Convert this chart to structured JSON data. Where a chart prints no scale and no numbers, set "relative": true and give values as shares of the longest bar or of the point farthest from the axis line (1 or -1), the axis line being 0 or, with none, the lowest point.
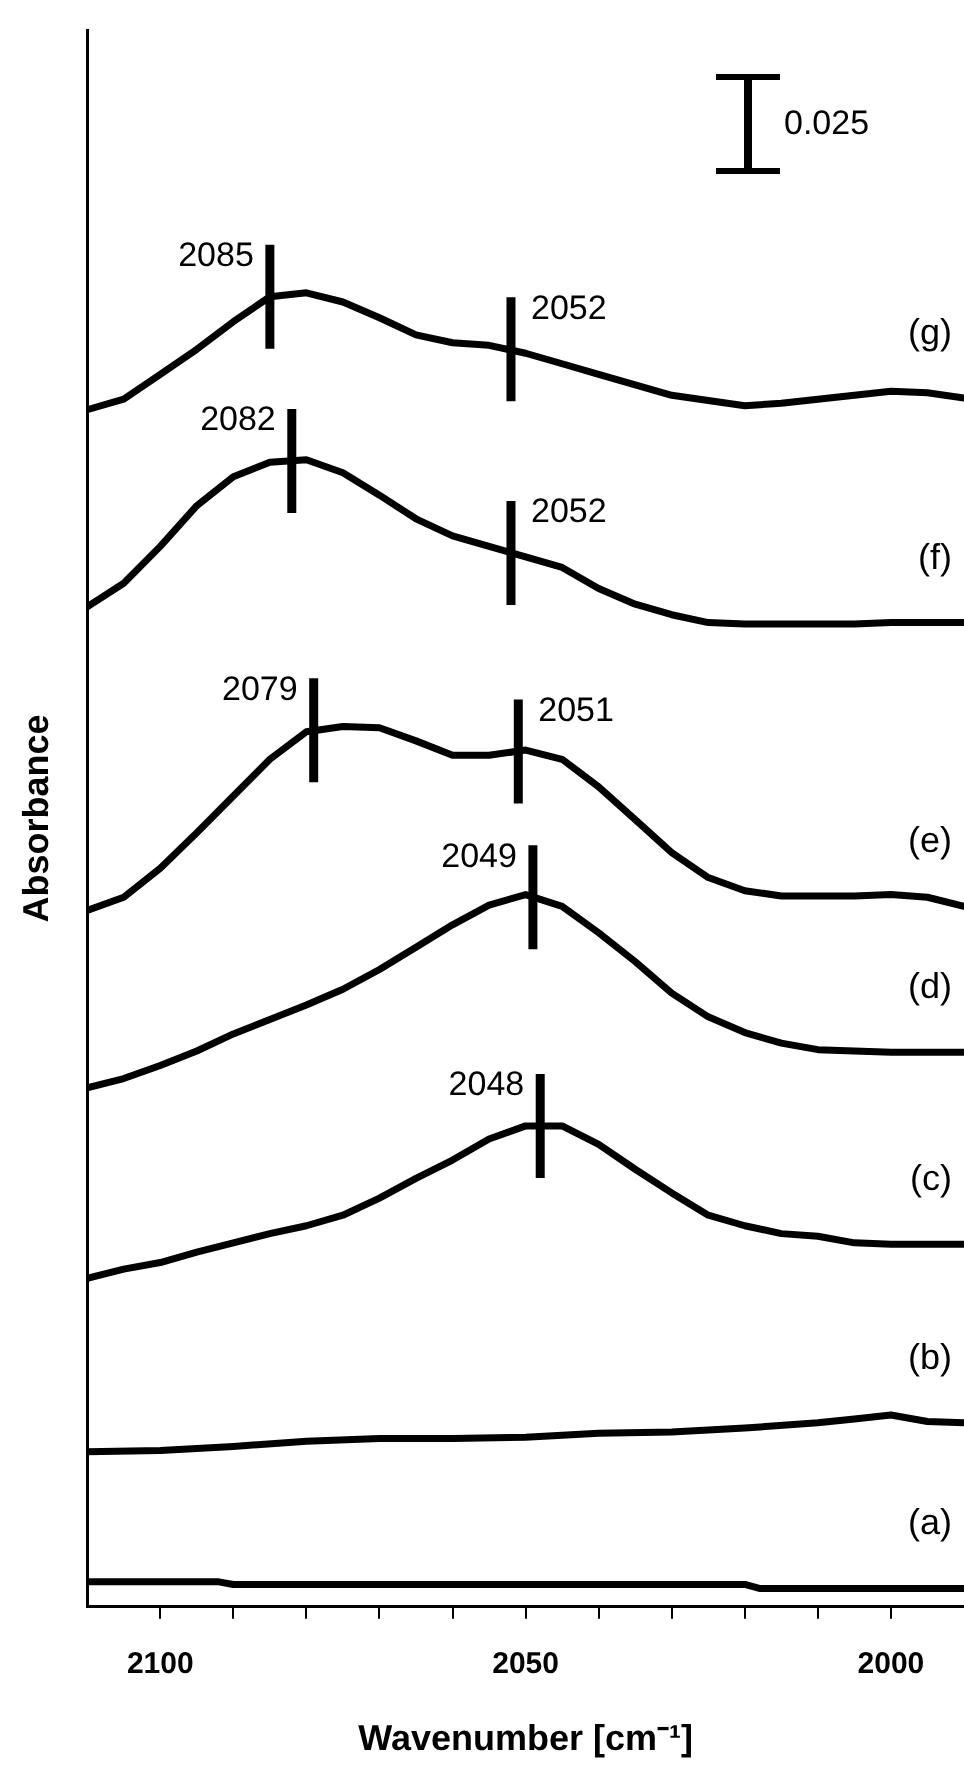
{
  "chart_data": {
    "type": "line",
    "relative": true,
    "xlabel": "Wavenumber [cm⁻¹]",
    "ylabel": "Absorbance",
    "xlim": [
      2110,
      1990
    ],
    "xticks": [
      2100,
      {
        "value": 2090,
        "label": null
      },
      {
        "value": 2080,
        "label": null
      },
      {
        "value": 2070,
        "label": null
      },
      {
        "value": 2060,
        "label": null
      },
      2050,
      {
        "value": 2040,
        "label": null
      },
      {
        "value": 2030,
        "label": null
      },
      {
        "value": 2020,
        "label": null
      },
      {
        "value": 2010,
        "label": null
      },
      2000
    ],
    "x": [
      2110,
      2105,
      2100,
      2095,
      2090,
      2085,
      2080,
      2075,
      2070,
      2065,
      2060,
      2055,
      2050,
      2045,
      2040,
      2035,
      2030,
      2025,
      2020,
      2015,
      2010,
      2005,
      2000,
      1995,
      1990
    ],
    "series": [
      {
        "name": "(g)",
        "color": "#000000",
        "values": [
          0.911,
          0.919,
          0.938,
          0.957,
          0.978,
          0.997,
          1.0,
          0.993,
          0.981,
          0.968,
          0.962,
          0.96,
          0.954,
          0.946,
          0.938,
          0.93,
          0.922,
          0.918,
          0.914,
          0.916,
          0.919,
          0.922,
          0.925,
          0.924,
          0.92
        ]
      },
      {
        "name": "(f)",
        "color": "#000000",
        "values": [
          0.761,
          0.779,
          0.807,
          0.838,
          0.86,
          0.871,
          0.873,
          0.863,
          0.846,
          0.828,
          0.815,
          0.807,
          0.799,
          0.791,
          0.775,
          0.763,
          0.755,
          0.749,
          0.748,
          0.748,
          0.748,
          0.748,
          0.749,
          0.749,
          0.749
        ]
      },
      {
        "name": "(e)",
        "color": "#000000",
        "values": [
          0.53,
          0.54,
          0.562,
          0.589,
          0.617,
          0.645,
          0.666,
          0.67,
          0.669,
          0.659,
          0.648,
          0.648,
          0.652,
          0.645,
          0.624,
          0.599,
          0.574,
          0.555,
          0.545,
          0.541,
          0.541,
          0.541,
          0.542,
          0.54,
          0.533
        ]
      },
      {
        "name": "(d)",
        "color": "#000000",
        "values": [
          0.395,
          0.402,
          0.412,
          0.423,
          0.436,
          0.447,
          0.458,
          0.47,
          0.485,
          0.502,
          0.519,
          0.534,
          0.542,
          0.533,
          0.513,
          0.491,
          0.467,
          0.449,
          0.437,
          0.429,
          0.424,
          0.423,
          0.422,
          0.422,
          0.422
        ]
      },
      {
        "name": "(c)",
        "color": "#000000",
        "values": [
          0.25,
          0.257,
          0.262,
          0.27,
          0.277,
          0.284,
          0.29,
          0.298,
          0.311,
          0.326,
          0.34,
          0.356,
          0.366,
          0.366,
          0.352,
          0.333,
          0.315,
          0.298,
          0.29,
          0.284,
          0.282,
          0.277,
          0.276,
          0.276,
          0.276
        ]
      },
      {
        "name": "(b)",
        "color": "#000000",
        "x": [
          2110,
          2100,
          2090,
          2080,
          2070,
          2060,
          2050,
          2040,
          2030,
          2020,
          2010,
          2005,
          2000,
          1995,
          1990
        ],
        "values": [
          0.118,
          0.119,
          0.122,
          0.126,
          0.128,
          0.128,
          0.129,
          0.132,
          0.133,
          0.136,
          0.14,
          0.143,
          0.146,
          0.141,
          0.14
        ]
      },
      {
        "name": "(a)",
        "color": "#000000",
        "x": [
          2110,
          2092,
          2090,
          2020,
          2018,
          1990
        ],
        "values": [
          0.019,
          0.019,
          0.017,
          0.017,
          0.014,
          0.014
        ]
      }
    ],
    "annotations": [
      {
        "text": "2085",
        "x": 2085,
        "y": 0.997
      },
      {
        "text": "2052",
        "x": 2052,
        "y": 0.957
      },
      {
        "text": "2082",
        "x": 2082,
        "y": 0.872
      },
      {
        "text": "2052",
        "x": 2052,
        "y": 0.802
      },
      {
        "text": "2079",
        "x": 2079,
        "y": 0.667
      },
      {
        "text": "2051",
        "x": 2051,
        "y": 0.651
      },
      {
        "text": "2049",
        "x": 2049,
        "y": 0.54
      },
      {
        "text": "2048",
        "x": 2048,
        "y": 0.366
      },
      "0.025"
    ]
  }
}
